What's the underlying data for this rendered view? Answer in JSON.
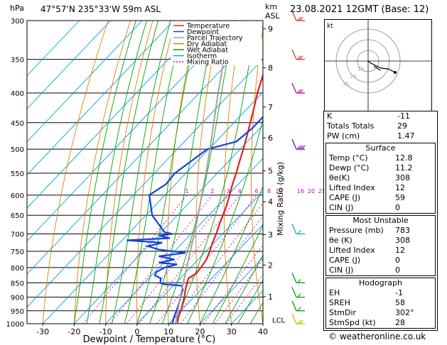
{
  "header": {
    "left_units": "hPa",
    "location": "47°57'N  235°33'W  59m  ASL",
    "km_units_line1": "km",
    "km_units_line2": "ASL",
    "datetime": "23.08.2021  12GMT  (Base: 12)"
  },
  "chart_data": {
    "type": "line",
    "xlabel": "Dewpoint / Temperature (°C)",
    "ylabel_right": "Mixing Ratio (g/kg)",
    "xlim": [
      -35,
      40
    ],
    "pressure_levels": [
      300,
      350,
      400,
      450,
      500,
      550,
      600,
      650,
      700,
      750,
      800,
      850,
      900,
      950,
      1000
    ],
    "x_ticks": [
      -30,
      -20,
      -10,
      0,
      10,
      20,
      30,
      40
    ],
    "km_ticks": [
      {
        "label": "9",
        "p": 310
      },
      {
        "label": "8",
        "p": 362
      },
      {
        "label": "7",
        "p": 423
      },
      {
        "label": "6",
        "p": 478
      },
      {
        "label": "5",
        "p": 545
      },
      {
        "label": "4",
        "p": 616
      },
      {
        "label": "3",
        "p": 702
      },
      {
        "label": "2",
        "p": 792
      },
      {
        "label": "1",
        "p": 898
      }
    ],
    "lcl_label": "LCL",
    "lcl_p": 985,
    "mixing_ratio_labels": [
      "1",
      "2",
      "3",
      "4",
      "6",
      "8",
      "10",
      "16",
      "20",
      "25"
    ],
    "mixing_ratio_values": [
      1,
      2,
      3,
      4,
      6,
      8,
      10,
      16,
      20,
      25
    ],
    "legend": [
      {
        "name": "Temperature",
        "color": "#e02020"
      },
      {
        "name": "Dewpoint",
        "color": "#1040e0"
      },
      {
        "name": "Parcel Trajectory",
        "color": "#a0a0a0"
      },
      {
        "name": "Dry Adiabat",
        "color": "#e08000"
      },
      {
        "name": "Wet Adiabat",
        "color": "#00a000"
      },
      {
        "name": "Isotherm",
        "color": "#00a0e0"
      },
      {
        "name": "Mixing Ratio",
        "color": "#c000c0"
      }
    ],
    "series": [
      {
        "name": "Temperature",
        "color": "#e02020",
        "points": [
          [
            1000,
            12.8
          ],
          [
            975,
            11.2
          ],
          [
            950,
            10.0
          ],
          [
            925,
            8.5
          ],
          [
            900,
            7.0
          ],
          [
            875,
            5.2
          ],
          [
            850,
            3.5
          ],
          [
            835,
            2.6
          ],
          [
            820,
            3.6
          ],
          [
            800,
            3.3
          ],
          [
            775,
            2.6
          ],
          [
            750,
            1.2
          ],
          [
            725,
            -0.5
          ],
          [
            700,
            -2.0
          ],
          [
            675,
            -3.8
          ],
          [
            650,
            -5.5
          ],
          [
            625,
            -7.3
          ],
          [
            600,
            -9.5
          ],
          [
            575,
            -11.8
          ],
          [
            550,
            -14.0
          ],
          [
            525,
            -16.5
          ],
          [
            500,
            -19.0
          ],
          [
            475,
            -21.8
          ],
          [
            450,
            -24.8
          ],
          [
            425,
            -28.0
          ],
          [
            400,
            -31.5
          ],
          [
            375,
            -34.8
          ],
          [
            350,
            -38.2
          ],
          [
            325,
            -42.0
          ],
          [
            300,
            -46.0
          ]
        ]
      },
      {
        "name": "Dewpoint",
        "color": "#1040e0",
        "points": [
          [
            1000,
            11.2
          ],
          [
            975,
            9.8
          ],
          [
            950,
            8.6
          ],
          [
            925,
            7.3
          ],
          [
            900,
            5.8
          ],
          [
            875,
            4.3
          ],
          [
            860,
            2.8
          ],
          [
            855,
            -3.5
          ],
          [
            850,
            -5.0
          ],
          [
            835,
            -6.2
          ],
          [
            825,
            -9.0
          ],
          [
            815,
            -9.5
          ],
          [
            800,
            -8.2
          ],
          [
            790,
            -5.2
          ],
          [
            785,
            -11.5
          ],
          [
            775,
            -7.5
          ],
          [
            765,
            -13.5
          ],
          [
            755,
            -6.0
          ],
          [
            745,
            -15.5
          ],
          [
            735,
            -20.0
          ],
          [
            725,
            -16.5
          ],
          [
            718,
            -28.5
          ],
          [
            712,
            -15.5
          ],
          [
            705,
            -19.5
          ],
          [
            700,
            -16.0
          ],
          [
            695,
            -19.0
          ],
          [
            650,
            -28.0
          ],
          [
            600,
            -35.0
          ],
          [
            575,
            -33.0
          ],
          [
            550,
            -33.5
          ],
          [
            525,
            -32.0
          ],
          [
            500,
            -30.5
          ],
          [
            485,
            -23.5
          ],
          [
            460,
            -22.5
          ],
          [
            430,
            -22.5
          ],
          [
            410,
            -21.5
          ],
          [
            395,
            -24.5
          ],
          [
            375,
            -25.0
          ],
          [
            350,
            -27.0
          ],
          [
            330,
            -29.5
          ],
          [
            310,
            -33.0
          ],
          [
            300,
            -36.5
          ]
        ]
      },
      {
        "name": "Parcel Trajectory",
        "color": "#a0a0a0",
        "points": [
          [
            1000,
            12.8
          ],
          [
            985,
            11.3
          ],
          [
            950,
            9.0
          ],
          [
            900,
            5.7
          ],
          [
            850,
            2.3
          ],
          [
            800,
            -1.2
          ],
          [
            750,
            -5.0
          ],
          [
            700,
            -9.0
          ],
          [
            650,
            -13.4
          ],
          [
            600,
            -18.3
          ],
          [
            550,
            -23.6
          ],
          [
            500,
            -29.6
          ],
          [
            450,
            -36.4
          ],
          [
            400,
            -44.0
          ],
          [
            350,
            -52.3
          ],
          [
            300,
            -61.5
          ]
        ]
      }
    ]
  },
  "hodograph": {
    "unit_label": "kt",
    "ring_labels": [
      "10",
      "20",
      "30"
    ]
  },
  "indices": {
    "rows": [
      {
        "label": "K",
        "value": "-11"
      },
      {
        "label": "Totals Totals",
        "value": "29"
      },
      {
        "label": "PW (cm)",
        "value": "1.47"
      }
    ]
  },
  "surface": {
    "title": "Surface",
    "rows": [
      {
        "label": "Temp (°C)",
        "value": "12.8"
      },
      {
        "label": "Dewp (°C)",
        "value": "11.2"
      },
      {
        "label": "θe(K)",
        "value": "308"
      },
      {
        "label": "Lifted Index",
        "value": "12"
      },
      {
        "label": "CAPE (J)",
        "value": "59"
      },
      {
        "label": "CIN (J)",
        "value": "0"
      }
    ]
  },
  "most_unstable": {
    "title": "Most Unstable",
    "rows": [
      {
        "label": "Pressure (mb)",
        "value": "783"
      },
      {
        "label": "θe (K)",
        "value": "308"
      },
      {
        "label": "Lifted Index",
        "value": "12"
      },
      {
        "label": "CAPE (J)",
        "value": "0"
      },
      {
        "label": "CIN (J)",
        "value": "0"
      }
    ]
  },
  "hodograph_box": {
    "title": "Hodograph",
    "rows": [
      {
        "label": "EH",
        "value": "-1"
      },
      {
        "label": "SREH",
        "value": "58"
      },
      {
        "label": "StmDir",
        "value": "302°"
      },
      {
        "label": "StmSpd (kt)",
        "value": "28"
      }
    ]
  },
  "footer": {
    "copyright": "© weatheronline.co.uk"
  }
}
